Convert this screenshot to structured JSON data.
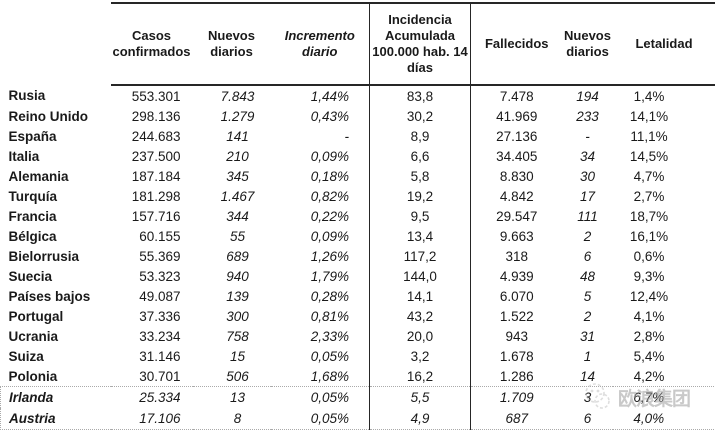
{
  "table": {
    "columns": [
      {
        "key": "country",
        "label": ""
      },
      {
        "key": "casos",
        "label": "Casos confirmados"
      },
      {
        "key": "nuevos1",
        "label": "Nuevos diarios"
      },
      {
        "key": "incremento",
        "label": "Incremento diario"
      },
      {
        "key": "incidencia",
        "label": "Incidencia Acumulada 100.000 hab. 14 días"
      },
      {
        "key": "fallecidos",
        "label": "Fallecidos"
      },
      {
        "key": "nuevos2",
        "label": "Nuevos diarios"
      },
      {
        "key": "letalidad",
        "label": "Letalidad"
      }
    ],
    "rows": [
      {
        "country": "Rusia",
        "casos": "553.301",
        "nuevos1": "7.843",
        "incremento": "1,44%",
        "incidencia": "83,8",
        "fallecidos": "7.478",
        "nuevos2": "194",
        "letalidad": "1,4%",
        "boxed": false
      },
      {
        "country": "Reino Unido",
        "casos": "298.136",
        "nuevos1": "1.279",
        "incremento": "0,43%",
        "incidencia": "30,2",
        "fallecidos": "41.969",
        "nuevos2": "233",
        "letalidad": "14,1%",
        "boxed": false
      },
      {
        "country": "España",
        "casos": "244.683",
        "nuevos1": "141",
        "incremento": "-",
        "incidencia": "8,9",
        "fallecidos": "27.136",
        "nuevos2": "-",
        "letalidad": "11,1%",
        "boxed": false
      },
      {
        "country": "Italia",
        "casos": "237.500",
        "nuevos1": "210",
        "incremento": "0,09%",
        "incidencia": "6,6",
        "fallecidos": "34.405",
        "nuevos2": "34",
        "letalidad": "14,5%",
        "boxed": false
      },
      {
        "country": "Alemania",
        "casos": "187.184",
        "nuevos1": "345",
        "incremento": "0,18%",
        "incidencia": "5,8",
        "fallecidos": "8.830",
        "nuevos2": "30",
        "letalidad": "4,7%",
        "boxed": false
      },
      {
        "country": "Turquía",
        "casos": "181.298",
        "nuevos1": "1.467",
        "incremento": "0,82%",
        "incidencia": "19,2",
        "fallecidos": "4.842",
        "nuevos2": "17",
        "letalidad": "2,7%",
        "boxed": false
      },
      {
        "country": "Francia",
        "casos": "157.716",
        "nuevos1": "344",
        "incremento": "0,22%",
        "incidencia": "9,5",
        "fallecidos": "29.547",
        "nuevos2": "111",
        "letalidad": "18,7%",
        "boxed": false
      },
      {
        "country": "Bélgica",
        "casos": "60.155",
        "nuevos1": "55",
        "incremento": "0,09%",
        "incidencia": "13,4",
        "fallecidos": "9.663",
        "nuevos2": "2",
        "letalidad": "16,1%",
        "boxed": false
      },
      {
        "country": "Bielorrusia",
        "casos": "55.369",
        "nuevos1": "689",
        "incremento": "1,26%",
        "incidencia": "117,2",
        "fallecidos": "318",
        "nuevos2": "6",
        "letalidad": "0,6%",
        "boxed": false
      },
      {
        "country": "Suecia",
        "casos": "53.323",
        "nuevos1": "940",
        "incremento": "1,79%",
        "incidencia": "144,0",
        "fallecidos": "4.939",
        "nuevos2": "48",
        "letalidad": "9,3%",
        "boxed": false
      },
      {
        "country": "Países bajos",
        "casos": "49.087",
        "nuevos1": "139",
        "incremento": "0,28%",
        "incidencia": "14,1",
        "fallecidos": "6.070",
        "nuevos2": "5",
        "letalidad": "12,4%",
        "boxed": false
      },
      {
        "country": "Portugal",
        "casos": "37.336",
        "nuevos1": "300",
        "incremento": "0,81%",
        "incidencia": "43,2",
        "fallecidos": "1.522",
        "nuevos2": "2",
        "letalidad": "4,1%",
        "boxed": false
      },
      {
        "country": "Ucrania",
        "casos": "33.234",
        "nuevos1": "758",
        "incremento": "2,33%",
        "incidencia": "20,0",
        "fallecidos": "943",
        "nuevos2": "31",
        "letalidad": "2,8%",
        "boxed": false
      },
      {
        "country": "Suiza",
        "casos": "31.146",
        "nuevos1": "15",
        "incremento": "0,05%",
        "incidencia": "3,2",
        "fallecidos": "1.678",
        "nuevos2": "1",
        "letalidad": "5,4%",
        "boxed": false
      },
      {
        "country": "Polonia",
        "casos": "30.701",
        "nuevos1": "506",
        "incremento": "1,68%",
        "incidencia": "16,2",
        "fallecidos": "1.286",
        "nuevos2": "14",
        "letalidad": "4,2%",
        "boxed": false
      },
      {
        "country": "Irlanda",
        "casos": "25.334",
        "nuevos1": "13",
        "incremento": "0,05%",
        "incidencia": "5,5",
        "fallecidos": "1.709",
        "nuevos2": "3",
        "letalidad": "6,7%",
        "boxed": true
      },
      {
        "country": "Austria",
        "casos": "17.106",
        "nuevos1": "8",
        "incremento": "0,05%",
        "incidencia": "4,9",
        "fallecidos": "687",
        "nuevos2": "6",
        "letalidad": "4,0%",
        "boxed": true
      }
    ]
  },
  "watermark": {
    "text": "欧浪集团"
  },
  "colors": {
    "text": "#1a1a1a",
    "border_solid": "#262626",
    "border_dotted": "#aaaaaa",
    "watermark_gray": "#9e9e9e"
  }
}
